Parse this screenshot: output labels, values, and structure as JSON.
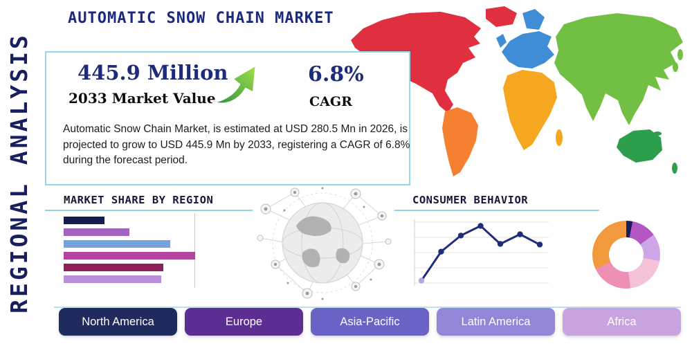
{
  "header": {
    "title": "AUTOMATIC SNOW CHAIN MARKET",
    "sidebar_label": "REGIONAL ANALYSIS"
  },
  "stats": {
    "value": "445.9 Million",
    "value_label": "2033 Market Value",
    "cagr": "6.8%",
    "cagr_label": "CAGR",
    "description": "Automatic Snow Chain Market, is estimated at USD 280.5 Mn in 2026, is projected to grow to USD 445.9 Mn by 2033, registering a CAGR of 6.8% during the forecast period."
  },
  "sections": {
    "market_share_title": "MARKET SHARE BY REGION",
    "consumer_behavior_title": "CONSUMER BEHAVIOR"
  },
  "region_buttons": [
    {
      "label": "North America",
      "color": "#1f2b5c"
    },
    {
      "label": "Europe",
      "color": "#5c2e91"
    },
    {
      "label": "Asia-Pacific",
      "color": "#6a62c4"
    },
    {
      "label": "Latin America",
      "color": "#9186d8"
    },
    {
      "label": "Africa",
      "color": "#c9a3e0"
    }
  ],
  "map": {
    "colors": {
      "north_america": "#e02f3f",
      "greenland": "#e02f3f",
      "south_america": "#f58030",
      "europe": "#3f8ed5",
      "africa": "#f5a71f",
      "asia": "#72c043",
      "australia": "#2d9e4b"
    }
  },
  "chart_data": [
    {
      "type": "bar",
      "orientation": "horizontal",
      "title": "MARKET SHARE BY REGION",
      "values": [
        31,
        50,
        81,
        100,
        76,
        74
      ],
      "value_scale": "percent of longest bar (no axis labels shown)",
      "colors": [
        "#141b4e",
        "#a262bd",
        "#76a3dc",
        "#b2449f",
        "#8e2158",
        "#b78fd9"
      ],
      "grid": "single vertical gridline"
    },
    {
      "type": "line",
      "title": "CONSUMER BEHAVIOR",
      "x": [
        1,
        2,
        3,
        4,
        5,
        6,
        7
      ],
      "values": [
        7,
        52,
        77,
        92,
        64,
        79,
        63
      ],
      "value_scale": "percent of plot height (no axis labels shown)",
      "color": "#1f2d7a",
      "start_marker_color": "#b7a4e3",
      "grid": "horizontal gridlines on"
    },
    {
      "type": "pie",
      "title": "regional share donut",
      "values": [
        3,
        12,
        13,
        20,
        20,
        32
      ],
      "colors": [
        "#1a1f5c",
        "#b457c4",
        "#cda6e8",
        "#f4c2d9",
        "#ee90b5",
        "#f2993d"
      ],
      "donut": true,
      "legend": "none shown"
    }
  ]
}
